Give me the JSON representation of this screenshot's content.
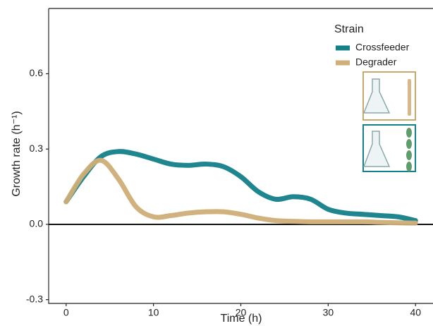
{
  "chart_data": {
    "type": "line",
    "x_label": "Time (h)",
    "y_label": "Growth rate (h⁻¹)",
    "legend_title": "Strain",
    "x": [
      0,
      2,
      4,
      6,
      8,
      10,
      12,
      14,
      16,
      18,
      20,
      22,
      24,
      26,
      28,
      30,
      32,
      34,
      36,
      38,
      40
    ],
    "series": [
      {
        "name": "Crossfeeder",
        "color": "#13808a",
        "values": [
          0.09,
          0.19,
          0.27,
          0.29,
          0.28,
          0.26,
          0.24,
          0.235,
          0.24,
          0.23,
          0.19,
          0.13,
          0.1,
          0.11,
          0.1,
          0.06,
          0.045,
          0.04,
          0.035,
          0.03,
          0.015
        ]
      },
      {
        "name": "Degrader",
        "color": "#cfae78",
        "values": [
          0.09,
          0.2,
          0.255,
          0.18,
          0.07,
          0.03,
          0.035,
          0.045,
          0.05,
          0.05,
          0.04,
          0.025,
          0.015,
          0.012,
          0.01,
          0.01,
          0.01,
          0.01,
          0.008,
          0.006,
          0.005
        ]
      }
    ],
    "xlim": [
      -2,
      42
    ],
    "ylim": [
      -0.315,
      0.86
    ],
    "xticks": [
      0,
      10,
      20,
      30,
      40
    ],
    "yticks": [
      {
        "value": -0.3,
        "label": "-0.3"
      },
      {
        "value": 0,
        "label": "0.0"
      },
      0.3,
      0.6
    ],
    "zero_line": true,
    "legend": "upper right"
  }
}
